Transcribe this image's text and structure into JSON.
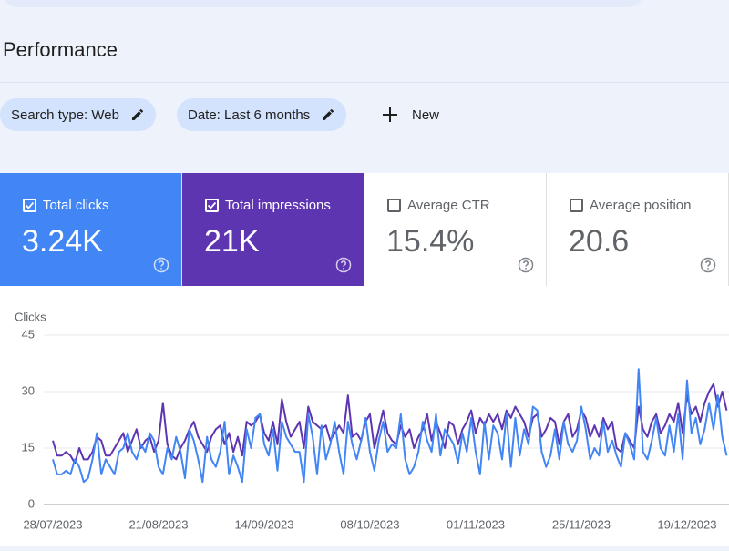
{
  "header": {
    "title": "Performance"
  },
  "filters": [
    {
      "label": "Search type: Web"
    },
    {
      "label": "Date: Last 6 months"
    }
  ],
  "new_button": {
    "label": "New"
  },
  "cards": [
    {
      "title": "Total clicks",
      "value": "3.24K",
      "selected": true,
      "color": "#4285f4"
    },
    {
      "title": "Total impressions",
      "value": "21K",
      "selected": true,
      "color": "#5e35b1"
    },
    {
      "title": "Average CTR",
      "value": "15.4%",
      "selected": false,
      "color": "#ffffff"
    },
    {
      "title": "Average position",
      "value": "20.6",
      "selected": false,
      "color": "#ffffff"
    }
  ],
  "chart_data": {
    "type": "line",
    "y_label": "Clicks",
    "ylim": [
      0,
      45
    ],
    "yticks": [
      0,
      15,
      30,
      45
    ],
    "grid": true,
    "categories": [
      "28/07/2023",
      null,
      null,
      null,
      null,
      null,
      null,
      null,
      null,
      null,
      null,
      null,
      null,
      null,
      null,
      null,
      null,
      null,
      null,
      null,
      null,
      null,
      null,
      null,
      "21/08/2023",
      null,
      null,
      null,
      null,
      null,
      null,
      null,
      null,
      null,
      null,
      null,
      null,
      null,
      null,
      null,
      null,
      null,
      null,
      null,
      null,
      null,
      null,
      null,
      "14/09/2023",
      null,
      null,
      null,
      null,
      null,
      null,
      null,
      null,
      null,
      null,
      null,
      null,
      null,
      null,
      null,
      null,
      null,
      null,
      null,
      null,
      null,
      null,
      null,
      "08/10/2023",
      null,
      null,
      null,
      null,
      null,
      null,
      null,
      null,
      null,
      null,
      null,
      null,
      null,
      null,
      null,
      null,
      null,
      null,
      null,
      null,
      null,
      null,
      null,
      "01/11/2023",
      null,
      null,
      null,
      null,
      null,
      null,
      null,
      null,
      null,
      null,
      null,
      null,
      null,
      null,
      null,
      null,
      null,
      null,
      null,
      null,
      null,
      null,
      null,
      "25/11/2023",
      null,
      null,
      null,
      null,
      null,
      null,
      null,
      null,
      null,
      null,
      null,
      null,
      null,
      null,
      null,
      null,
      null,
      null,
      null,
      null,
      null,
      null,
      null,
      "19/12/2023",
      null,
      null,
      null,
      null,
      null,
      null,
      null,
      null,
      null
    ],
    "series": [
      {
        "name": "Total impressions",
        "color": "#5e35b1",
        "values": [
          17,
          13,
          13,
          14,
          13,
          11,
          15,
          12,
          12,
          14,
          18,
          17,
          13,
          13,
          15,
          17,
          19,
          14,
          17,
          20,
          15,
          17,
          18,
          14,
          17,
          27,
          16,
          13,
          12,
          15,
          17,
          20,
          22,
          18,
          16,
          14,
          18,
          20,
          21,
          16,
          19,
          14,
          18,
          13,
          22,
          21,
          22,
          24,
          19,
          17,
          22,
          16,
          28,
          22,
          18,
          20,
          22,
          15,
          26,
          22,
          21,
          20,
          21,
          17,
          19,
          21,
          19,
          29,
          18,
          19,
          17,
          22,
          24,
          15,
          20,
          25,
          19,
          17,
          16,
          21,
          18,
          20,
          15,
          18,
          20,
          24,
          17,
          22,
          19,
          15,
          22,
          21,
          16,
          20,
          22,
          25,
          19,
          23,
          21,
          24,
          22,
          24,
          20,
          25,
          23,
          26,
          24,
          22,
          18,
          23,
          24,
          18,
          20,
          23,
          22,
          16,
          22,
          24,
          18,
          20,
          25,
          23,
          18,
          21,
          18,
          23,
          20,
          22,
          15,
          14,
          19,
          17,
          15,
          26,
          20,
          18,
          22,
          24,
          19,
          21,
          24,
          22,
          27,
          19,
          29,
          24,
          26,
          22,
          27,
          30,
          32,
          26,
          30,
          25
        ]
      },
      {
        "name": "Total clicks",
        "color": "#4285f4",
        "values": [
          12,
          8,
          8,
          9,
          8,
          12,
          10,
          6,
          7,
          12,
          19,
          8,
          12,
          10,
          8,
          14,
          15,
          19,
          14,
          12,
          16,
          14,
          19,
          17,
          10,
          8,
          15,
          12,
          18,
          14,
          7,
          20,
          17,
          12,
          6,
          18,
          12,
          10,
          14,
          22,
          8,
          13,
          10,
          6,
          20,
          15,
          23,
          24,
          16,
          13,
          20,
          9,
          22,
          18,
          16,
          14,
          14,
          6,
          24,
          18,
          8,
          21,
          12,
          16,
          22,
          14,
          8,
          22,
          16,
          12,
          17,
          23,
          14,
          9,
          17,
          22,
          14,
          16,
          15,
          24,
          12,
          8,
          10,
          14,
          22,
          17,
          14,
          24,
          13,
          20,
          18,
          16,
          11,
          19,
          14,
          23,
          14,
          8,
          22,
          12,
          21,
          19,
          12,
          24,
          10,
          23,
          13,
          20,
          16,
          26,
          25,
          14,
          10,
          13,
          20,
          12,
          22,
          16,
          14,
          17,
          26,
          20,
          12,
          15,
          13,
          22,
          14,
          17,
          13,
          10,
          19,
          16,
          12,
          36,
          14,
          12,
          17,
          23,
          15,
          13,
          21,
          14,
          24,
          12,
          33,
          19,
          23,
          16,
          20,
          27,
          20,
          29,
          18,
          13
        ]
      }
    ]
  }
}
